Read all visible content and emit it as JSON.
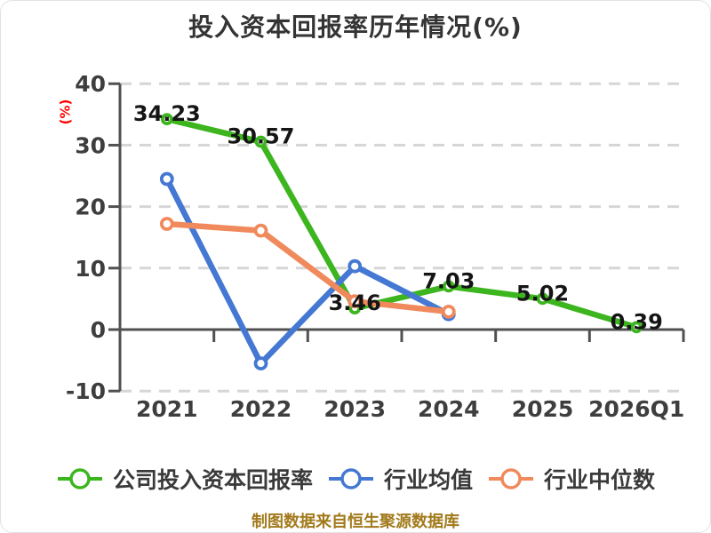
{
  "title": "投入资本回报率历年情况(%)",
  "footer": "制图数据来自恒生聚源数据库",
  "colors": {
    "axis": "#505052",
    "grid": "#d6d6d6",
    "tick_label": "#3e3e3e",
    "value_label": "#151515",
    "title": "#343434",
    "footer": "#a27a1c",
    "ylabel": "#ff0000",
    "marker_fill": "#ffffff",
    "series_green": "#3cb51e",
    "series_blue": "#4478d2",
    "series_orange": "#f08a5c"
  },
  "chart_data": {
    "type": "line",
    "title": "投入资本回报率历年情况(%)",
    "xlabel": "",
    "ylabel": "(%)",
    "categories": [
      "2021",
      "2022",
      "2023",
      "2024",
      "2025",
      "2026Q1"
    ],
    "yticks": [
      40,
      30,
      20,
      10,
      0,
      -10
    ],
    "ylim": [
      -10,
      40
    ],
    "grid": "horizontal-dashed",
    "legend_position": "bottom",
    "series": [
      {
        "name": "公司投入资本回报率",
        "color": "#3cb51e",
        "values": [
          34.23,
          30.57,
          3.46,
          7.03,
          5.02,
          0.39
        ],
        "labels": [
          "34.23",
          "30.57",
          "3.46",
          "7.03",
          "5.02",
          "0.39"
        ]
      },
      {
        "name": "行业均值",
        "color": "#4478d2",
        "values": [
          24.5,
          -5.5,
          10.3,
          2.5
        ],
        "labels": []
      },
      {
        "name": "行业中位数",
        "color": "#f08a5c",
        "values": [
          17.2,
          16.1,
          4.6,
          2.9
        ],
        "labels": []
      }
    ]
  }
}
